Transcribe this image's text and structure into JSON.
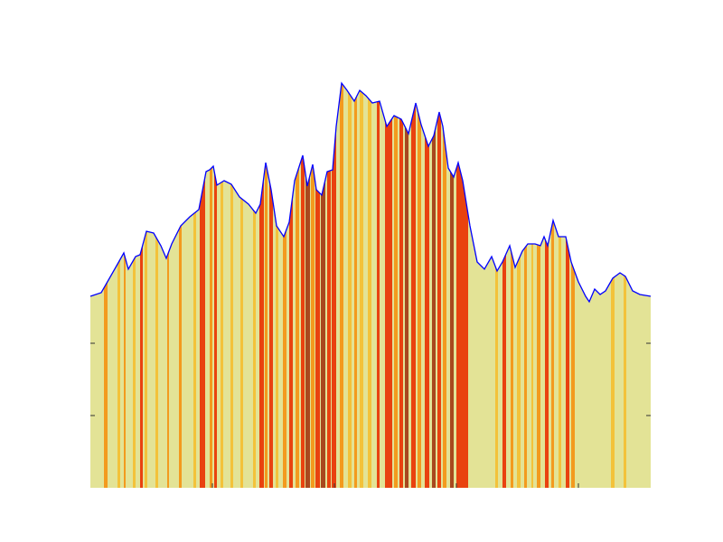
{
  "chart_data": {
    "type": "area",
    "xlim": [
      0,
      620
    ],
    "ylim": [
      0,
      480
    ],
    "xticks": [
      135,
      270,
      405,
      540
    ],
    "yticks": [
      80,
      160
    ],
    "fill_color": "#e3e396",
    "line_color": "#0000ff",
    "x": [
      0,
      12,
      20,
      28,
      37,
      42,
      50,
      55,
      62,
      70,
      78,
      84,
      90,
      100,
      110,
      120,
      128,
      132,
      136,
      140,
      148,
      156,
      165,
      175,
      183,
      188,
      194,
      200,
      206,
      214,
      220,
      226,
      235,
      240,
      246,
      250,
      256,
      262,
      268,
      272,
      278,
      284,
      292,
      298,
      305,
      312,
      320,
      328,
      336,
      344,
      352,
      360,
      366,
      374,
      380,
      386,
      390,
      396,
      402,
      407,
      412,
      420,
      428,
      436,
      444,
      450,
      456,
      464,
      470,
      478,
      484,
      492,
      498,
      502,
      506,
      512,
      518,
      526,
      532,
      540,
      548,
      552,
      558,
      564,
      570,
      578,
      586,
      592,
      600,
      608,
      620
    ],
    "values": [
      212,
      216,
      230,
      244,
      260,
      242,
      256,
      258,
      284,
      282,
      268,
      254,
      270,
      290,
      300,
      308,
      350,
      352,
      356,
      335,
      340,
      336,
      322,
      314,
      304,
      314,
      360,
      330,
      290,
      278,
      294,
      340,
      368,
      334,
      358,
      330,
      324,
      350,
      352,
      400,
      448,
      440,
      428,
      440,
      434,
      426,
      428,
      400,
      412,
      408,
      392,
      426,
      402,
      378,
      390,
      416,
      400,
      354,
      344,
      360,
      340,
      290,
      250,
      242,
      256,
      240,
      250,
      268,
      244,
      262,
      270,
      270,
      268,
      278,
      268,
      296,
      278,
      278,
      250,
      228,
      212,
      206,
      220,
      214,
      218,
      232,
      238,
      234,
      218,
      214,
      212
    ],
    "stripes": [
      {
        "x": [
          15,
          19
        ],
        "color": "#f39a1e"
      },
      {
        "x": [
          30,
          33
        ],
        "color": "#f3c23a"
      },
      {
        "x": [
          37,
          39
        ],
        "color": "#f39a1e"
      },
      {
        "x": [
          47,
          50
        ],
        "color": "#f3c23a"
      },
      {
        "x": [
          55,
          58
        ],
        "color": "#e9420f"
      },
      {
        "x": [
          60,
          63
        ],
        "color": "#f3c23a"
      },
      {
        "x": [
          72,
          75
        ],
        "color": "#f3c23a"
      },
      {
        "x": [
          85,
          87
        ],
        "color": "#f39a1e"
      },
      {
        "x": [
          98,
          101
        ],
        "color": "#f39a1e"
      },
      {
        "x": [
          114,
          117
        ],
        "color": "#f3c23a"
      },
      {
        "x": [
          121,
          127
        ],
        "color": "#e9420f"
      },
      {
        "x": [
          132,
          135
        ],
        "color": "#f39a1e"
      },
      {
        "x": [
          137,
          140
        ],
        "color": "#e9420f"
      },
      {
        "x": [
          144,
          147
        ],
        "color": "#f3c23a"
      },
      {
        "x": [
          155,
          158
        ],
        "color": "#f3c23a"
      },
      {
        "x": [
          166,
          169
        ],
        "color": "#f3c23a"
      },
      {
        "x": [
          180,
          183
        ],
        "color": "#f3c23a"
      },
      {
        "x": [
          187,
          192
        ],
        "color": "#e9420f"
      },
      {
        "x": [
          193,
          196
        ],
        "color": "#f39a1e"
      },
      {
        "x": [
          198,
          202
        ],
        "color": "#e9420f"
      },
      {
        "x": [
          205,
          208
        ],
        "color": "#f3c23a"
      },
      {
        "x": [
          213,
          217
        ],
        "color": "#f39a1e"
      },
      {
        "x": [
          220,
          224
        ],
        "color": "#e9420f"
      },
      {
        "x": [
          227,
          231
        ],
        "color": "#f39a1e"
      },
      {
        "x": [
          233,
          237
        ],
        "color": "#e9420f"
      },
      {
        "x": [
          238,
          243
        ],
        "color": "#a8481e"
      },
      {
        "x": [
          244,
          248
        ],
        "color": "#f39a1e"
      },
      {
        "x": [
          249,
          254
        ],
        "color": "#e9420f"
      },
      {
        "x": [
          255,
          260
        ],
        "color": "#a8481e"
      },
      {
        "x": [
          262,
          266
        ],
        "color": "#e9420f"
      },
      {
        "x": [
          267,
          272
        ],
        "color": "#e9420f"
      },
      {
        "x": [
          276,
          280
        ],
        "color": "#f39a1e"
      },
      {
        "x": [
          285,
          289
        ],
        "color": "#f3c23a"
      },
      {
        "x": [
          292,
          295
        ],
        "color": "#f39a1e"
      },
      {
        "x": [
          298,
          302
        ],
        "color": "#f3c23a"
      },
      {
        "x": [
          307,
          311
        ],
        "color": "#f3c23a"
      },
      {
        "x": [
          317,
          320
        ],
        "color": "#e9420f"
      },
      {
        "x": [
          326,
          334
        ],
        "color": "#e9420f"
      },
      {
        "x": [
          336,
          340
        ],
        "color": "#f39a1e"
      },
      {
        "x": [
          342,
          346
        ],
        "color": "#e9420f"
      },
      {
        "x": [
          348,
          352
        ],
        "color": "#a8481e"
      },
      {
        "x": [
          355,
          360
        ],
        "color": "#e9420f"
      },
      {
        "x": [
          362,
          366
        ],
        "color": "#f39a1e"
      },
      {
        "x": [
          370,
          375
        ],
        "color": "#e9420f"
      },
      {
        "x": [
          378,
          382
        ],
        "color": "#a8481e"
      },
      {
        "x": [
          384,
          388
        ],
        "color": "#e9420f"
      },
      {
        "x": [
          390,
          394
        ],
        "color": "#f39a1e"
      },
      {
        "x": [
          398,
          402
        ],
        "color": "#a8481e"
      },
      {
        "x": [
          405,
          418
        ],
        "color": "#e9420f"
      },
      {
        "x": [
          448,
          451
        ],
        "color": "#f3c23a"
      },
      {
        "x": [
          456,
          460
        ],
        "color": "#e9420f"
      },
      {
        "x": [
          465,
          468
        ],
        "color": "#f39a1e"
      },
      {
        "x": [
          472,
          476
        ],
        "color": "#f3c23a"
      },
      {
        "x": [
          480,
          483
        ],
        "color": "#f39a1e"
      },
      {
        "x": [
          488,
          490
        ],
        "color": "#f3c23a"
      },
      {
        "x": [
          494,
          498
        ],
        "color": "#f39a1e"
      },
      {
        "x": [
          503,
          507
        ],
        "color": "#e9420f"
      },
      {
        "x": [
          510,
          513
        ],
        "color": "#f39a1e"
      },
      {
        "x": [
          518,
          521
        ],
        "color": "#f3c23a"
      },
      {
        "x": [
          526,
          530
        ],
        "color": "#e9420f"
      },
      {
        "x": [
          532,
          536
        ],
        "color": "#f39a1e"
      },
      {
        "x": [
          576,
          580
        ],
        "color": "#f3c23a"
      },
      {
        "x": [
          590,
          593
        ],
        "color": "#f3c23a"
      }
    ]
  }
}
